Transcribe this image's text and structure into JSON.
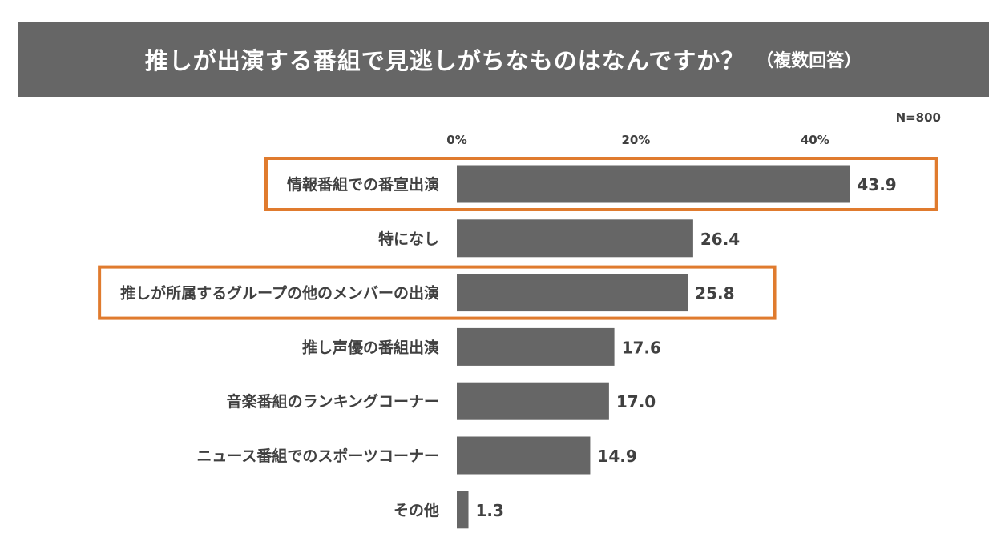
{
  "title": "推しが出演する番組で見逃しがちなものはなんですか？",
  "subtitle": "（複数回答）",
  "sample_size": "N=800",
  "colors": {
    "header": "#666666",
    "bar": "#666666",
    "highlight": "#E07B2E"
  },
  "chart_data": {
    "type": "bar",
    "orientation": "horizontal",
    "title": "推しが出演する番組で見逃しがちなものはなんですか？",
    "subtitle": "（複数回答）",
    "xlim": [
      0,
      50
    ],
    "x_ticks": [
      "0%",
      "20%",
      "40%"
    ],
    "x_tick_values": [
      0,
      20,
      40
    ],
    "grid": false,
    "categories": [
      "情報番組での番宣出演",
      "特になし",
      "推しが所属するグループの他のメンバーの出演",
      "推し声優の番組出演",
      "音楽番組のランキングコーナー",
      "ニュース番組でのスポーツコーナー",
      "その他"
    ],
    "values": [
      43.9,
      26.4,
      25.8,
      17.6,
      17.0,
      14.9,
      1.3
    ],
    "value_labels": [
      "43.9",
      "26.4",
      "25.8",
      "17.6",
      "17.0",
      "14.9",
      "1.3"
    ],
    "highlighted_categories": [
      "情報番組での番宣出演",
      "推しが所属するグループの他のメンバーの出演"
    ]
  }
}
